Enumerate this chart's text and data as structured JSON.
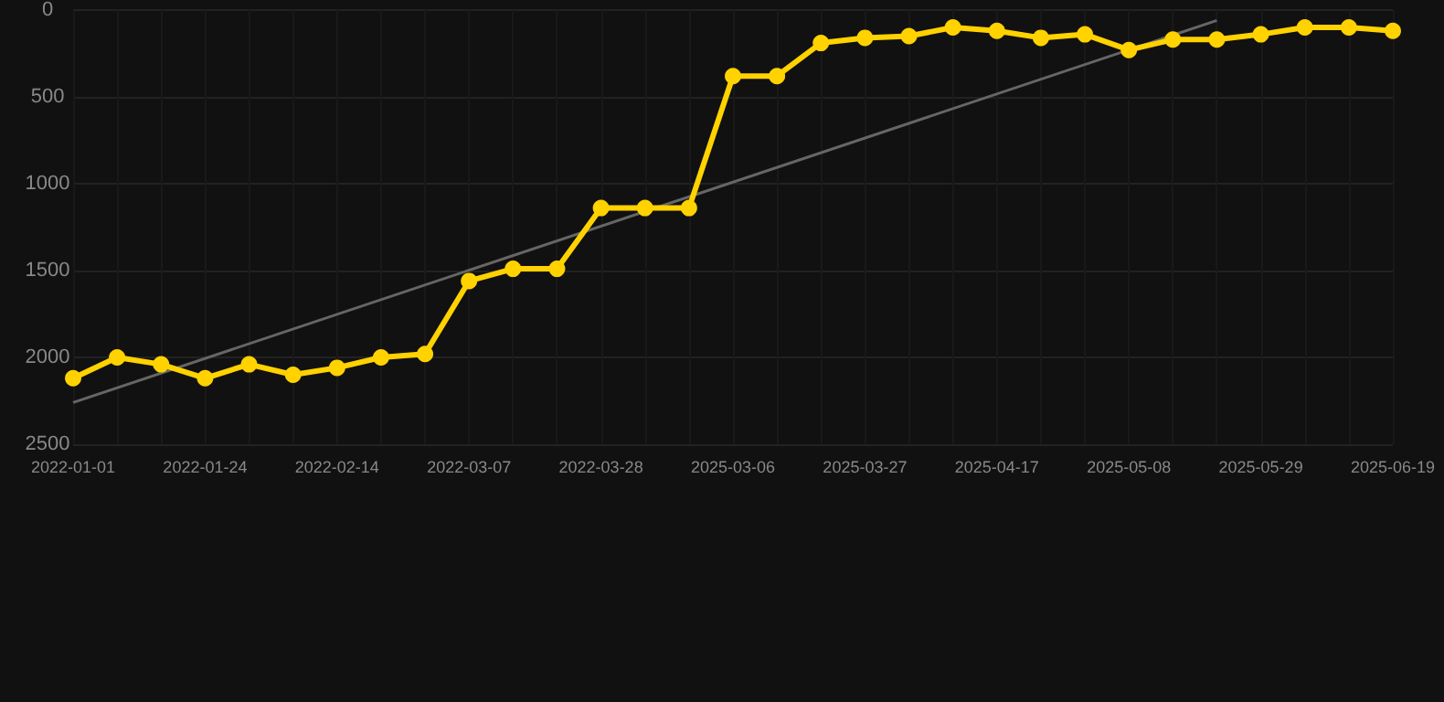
{
  "chart_data": {
    "type": "line",
    "categories": [
      "2022-01-01",
      null,
      null,
      "2022-01-24",
      null,
      null,
      "2022-02-14",
      null,
      null,
      "2022-03-07",
      null,
      null,
      "2022-03-28",
      null,
      null,
      "2025-03-06",
      null,
      null,
      "2025-03-27",
      null,
      null,
      "2025-04-17",
      null,
      null,
      "2025-05-08",
      null,
      null,
      "2025-05-29",
      null,
      null,
      "2025-06-19"
    ],
    "series": [
      {
        "color": "#ffd200",
        "marker": "circle",
        "values": [
          2120,
          2000,
          2040,
          2120,
          2040,
          2100,
          2060,
          2000,
          1980,
          1560,
          1490,
          1490,
          1140,
          1140,
          1140,
          380,
          380,
          190,
          160,
          150,
          100,
          120,
          160,
          140,
          230,
          170,
          170,
          140,
          100,
          100,
          120
        ]
      },
      {
        "type": "line",
        "color": "#666666",
        "marker": "none",
        "values": [
          2260,
          null,
          null,
          null,
          null,
          null,
          null,
          null,
          null,
          null,
          null,
          null,
          null,
          null,
          null,
          null,
          null,
          null,
          null,
          null,
          null,
          null,
          null,
          null,
          null,
          null,
          60,
          null,
          null,
          null,
          null
        ]
      }
    ],
    "ylim": [
      2500,
      0
    ],
    "yticks": [
      0,
      500,
      1000,
      1500,
      2000,
      2500
    ],
    "grid": true
  }
}
